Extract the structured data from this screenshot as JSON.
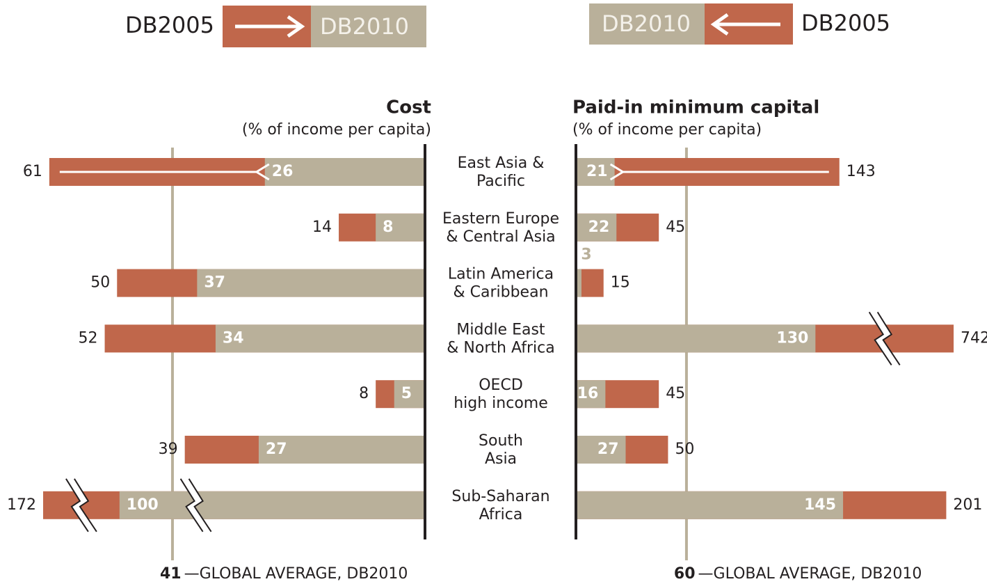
{
  "chart_data": {
    "type": "paired_bar",
    "categories": [
      [
        "East Asia &",
        "Pacific"
      ],
      [
        "Eastern Europe",
        "& Central Asia"
      ],
      [
        "Latin America",
        "& Caribbean"
      ],
      [
        "Middle East",
        "& North Africa"
      ],
      [
        "OECD",
        "high income"
      ],
      [
        "South",
        "Asia"
      ],
      [
        "Sub-Saharan",
        "Africa"
      ]
    ],
    "panels": [
      {
        "title": "Cost",
        "subtitle": "(% of income per capita)",
        "xlim": [
          0,
          62
        ],
        "series": [
          {
            "name": "DB2005",
            "color": "#c0674b",
            "values": [
              61,
              14,
              50,
              52,
              8,
              39,
              172
            ]
          },
          {
            "name": "DB2010",
            "color": "#b9b09a",
            "values": [
              26,
              8,
              37,
              34,
              5,
              27,
              100
            ]
          }
        ],
        "average": {
          "value": 41,
          "label": "—GLOBAL AVERAGE, DB2010"
        }
      },
      {
        "title": "Paid-in minimum capital",
        "subtitle": "(% of income per capita)",
        "xlim": [
          0,
          205
        ],
        "series": [
          {
            "name": "DB2005",
            "color": "#c0674b",
            "values": [
              143,
              45,
              15,
              742,
              45,
              50,
              201
            ]
          },
          {
            "name": "DB2010",
            "color": "#b9b09a",
            "values": [
              21,
              22,
              3,
              130,
              16,
              27,
              145
            ]
          }
        ],
        "average": {
          "value": 60,
          "label": "—GLOBAL AVERAGE, DB2010"
        }
      }
    ]
  }
}
